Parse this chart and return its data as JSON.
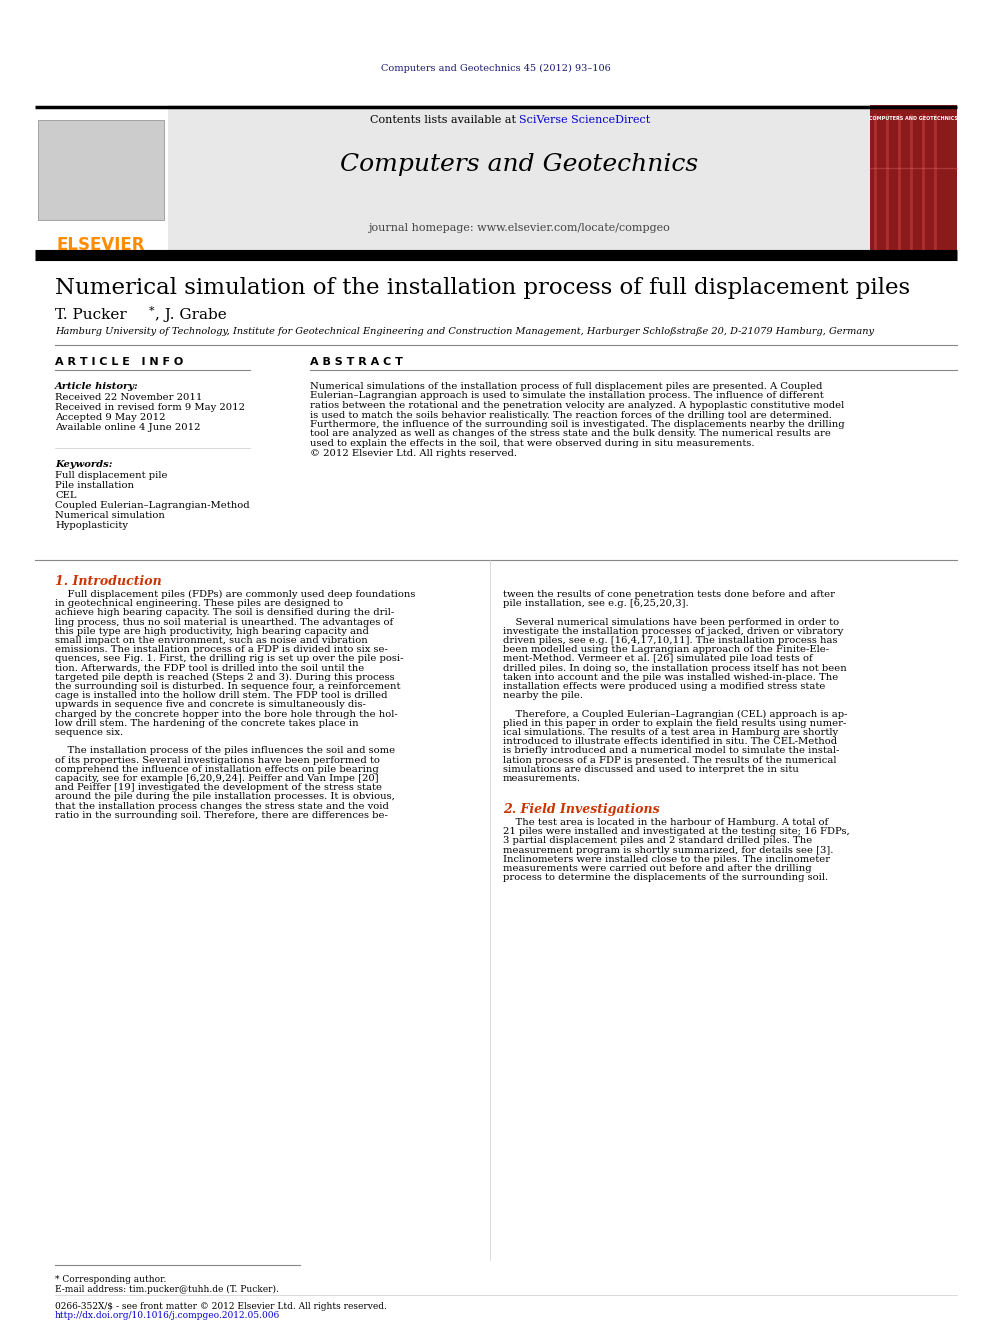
{
  "journal_ref": "Computers and Geotechnics 45 (2012) 93–106",
  "journal_ref_color": "#1a1a6e",
  "contents_line": "Contents lists available at ",
  "sciverse_text": "SciVerse ScienceDirect",
  "sciverse_color": "#0000cc",
  "journal_name": "Computers and Geotechnics",
  "journal_homepage_label": "journal homepage: www.elsevier.com/locate/compgeo",
  "elsevier_color": "#FF8C00",
  "paper_title": "Numerical simulation of the installation process of full displacement piles",
  "authors": "T. Pucker *, J. Grabe",
  "affiliation": "Hamburg University of Technology, Institute for Geotechnical Engineering and Construction Management, Harburger Schloßstraße 20, D-21079 Hamburg, Germany",
  "article_info_header": "A R T I C L E   I N F O",
  "abstract_header": "A B S T R A C T",
  "article_history_label": "Article history:",
  "received_1": "Received 22 November 2011",
  "received_2": "Received in revised form 9 May 2012",
  "accepted": "Accepted 9 May 2012",
  "available": "Available online 4 June 2012",
  "keywords_label": "Keywords:",
  "keywords": [
    "Full displacement pile",
    "Pile installation",
    "CEL",
    "Coupled Eulerian–Lagrangian-Method",
    "Numerical simulation",
    "Hypoplasticity"
  ],
  "abstract_lines": [
    "Numerical simulations of the installation process of full displacement piles are presented. A Coupled",
    "Eulerian–Lagrangian approach is used to simulate the installation process. The influence of different",
    "ratios between the rotational and the penetration velocity are analyzed. A hypoplastic constitutive model",
    "is used to match the soils behavior realistically. The reaction forces of the drilling tool are determined.",
    "Furthermore, the influence of the surrounding soil is investigated. The displacements nearby the drilling",
    "tool are analyzed as well as changes of the stress state and the bulk density. The numerical results are",
    "used to explain the effects in the soil, that were observed during in situ measurements.",
    "© 2012 Elsevier Ltd. All rights reserved."
  ],
  "section1_title": "1. Introduction",
  "section2_title": "2. Field Investigations",
  "col1_lines": [
    "    Full displacement piles (FDPs) are commonly used deep foundations",
    "in geotechnical engineering. These piles are designed to",
    "achieve high bearing capacity. The soil is densified during the dril-",
    "ling process, thus no soil material is unearthed. The advantages of",
    "this pile type are high productivity, high bearing capacity and",
    "small impact on the environment, such as noise and vibration",
    "emissions. The installation process of a FDP is divided into six se-",
    "quences, see Fig. 1. First, the drilling rig is set up over the pile posi-",
    "tion. Afterwards, the FDP tool is drilled into the soil until the",
    "targeted pile depth is reached (Steps 2 and 3). During this process",
    "the surrounding soil is disturbed. In sequence four, a reinforcement",
    "cage is installed into the hollow drill stem. The FDP tool is drilled",
    "upwards in sequence five and concrete is simultaneously dis-",
    "charged by the concrete hopper into the bore hole through the hol-",
    "low drill stem. The hardening of the concrete takes place in",
    "sequence six.",
    "",
    "    The installation process of the piles influences the soil and some",
    "of its properties. Several investigations have been performed to",
    "comprehend the influence of installation effects on pile bearing",
    "capacity, see for example [6,20,9,24]. Peiffer and Van Impe [20]",
    "and Peiffer [19] investigated the development of the stress state",
    "around the pile during the pile installation processes. It is obvious,",
    "that the installation process changes the stress state and the void",
    "ratio in the surrounding soil. Therefore, there are differences be-"
  ],
  "col2_lines": [
    "tween the results of cone penetration tests done before and after",
    "pile installation, see e.g. [6,25,20,3].",
    "",
    "    Several numerical simulations have been performed in order to",
    "investigate the installation processes of jacked, driven or vibratory",
    "driven piles, see e.g. [16,4,17,10,11]. The installation process has",
    "been modelled using the Lagrangian approach of the Finite-Ele-",
    "ment-Method. Vermeer et al. [26] simulated pile load tests of",
    "drilled piles. In doing so, the installation process itself has not been",
    "taken into account and the pile was installed wished-in-place. The",
    "installation effects were produced using a modified stress state",
    "nearby the pile.",
    "",
    "    Therefore, a Coupled Eulerian–Lagrangian (CEL) approach is ap-",
    "plied in this paper in order to explain the field results using numer-",
    "ical simulations. The results of a test area in Hamburg are shortly",
    "introduced to illustrate effects identified in situ. The CEL-Method",
    "is briefly introduced and a numerical model to simulate the instal-",
    "lation process of a FDP is presented. The results of the numerical",
    "simulations are discussed and used to interpret the in situ",
    "measurements."
  ],
  "sec2_lines": [
    "    The test area is located in the harbour of Hamburg. A total of",
    "21 piles were installed and investigated at the testing site; 16 FDPs,",
    "3 partial displacement piles and 2 standard drilled piles. The",
    "measurement program is shortly summarized, for details see [3].",
    "Inclinometers were installed close to the piles. The inclinometer",
    "measurements were carried out before and after the drilling",
    "process to determine the displacements of the surrounding soil."
  ],
  "footnote_star": "* Corresponding author.",
  "footnote_email": "E-mail address: tim.pucker@tuhh.de (T. Pucker).",
  "footnote_issn": "0266-352X/$ - see front matter © 2012 Elsevier Ltd. All rights reserved.",
  "footnote_doi": "http://dx.doi.org/10.1016/j.compgeo.2012.05.006",
  "doi_color": "#0000cc",
  "background_color": "#ffffff",
  "header_bg": "#e8e8e8",
  "body_text_size": 7.2,
  "small_text_size": 6.5
}
